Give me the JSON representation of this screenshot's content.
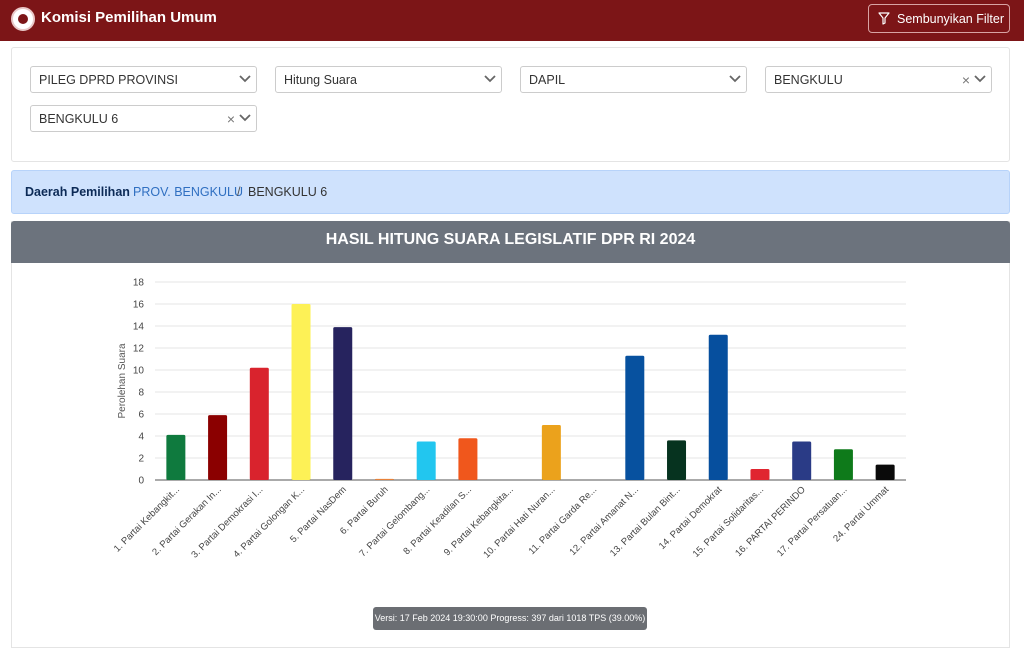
{
  "header": {
    "app_title": "Komisi Pemilihan Umum",
    "hide_filter_label": "Sembunyikan Filter"
  },
  "filters": {
    "election_type": "PILEG DPRD PROVINSI",
    "count_mode": "Hitung Suara",
    "region_level": "DAPIL",
    "province": "BENGKULU",
    "district": "BENGKULU 6",
    "clear_symbol": "×"
  },
  "breadcrumb": {
    "label": "Daerah Pemilihan",
    "province_link": "PROV. BENGKULU",
    "separator": "/",
    "current": "BENGKULU 6"
  },
  "chart_data": {
    "type": "bar",
    "title": "HASIL HITUNG SUARA LEGISLATIF DPR RI 2024",
    "xlabel": "",
    "ylabel": "Perolehan Suara",
    "ylim": [
      0,
      18
    ],
    "yticks": [
      0,
      2,
      4,
      6,
      8,
      10,
      12,
      14,
      16,
      18
    ],
    "grid": true,
    "categories": [
      "1. Partai Kebangkit...",
      "2. Partai Gerakan In...",
      "3. Partai Demokrasi I...",
      "4. Partai Golongan K...",
      "5. Partai NasDem",
      "6. Partai Buruh",
      "7. Partai Gelombang...",
      "8. Partai Keadilan S...",
      "9. Partai Kebangkita...",
      "10. Partai Hati Nuran...",
      "11. Partai Garda Re...",
      "12. Partai Amanat N...",
      "13. Partai Bulan Bint...",
      "14. Partai Demokrat",
      "15. Partai Solidaritas...",
      "16. PARTAI PERINDO",
      "17. Partai Persatuan...",
      "24. Partai Ummat"
    ],
    "values": [
      4.1,
      5.9,
      10.2,
      16,
      13.9,
      0.1,
      3.5,
      3.8,
      0,
      5,
      0,
      11.3,
      3.6,
      13.2,
      1,
      3.5,
      2.8,
      1.4
    ],
    "colors": [
      "#0f7a3e",
      "#8b0000",
      "#d9232d",
      "#fdf156",
      "#26235e",
      "#e8823a",
      "#22c6ef",
      "#f0571c",
      "#2e7d32",
      "#eba21c",
      "#8c5a2b",
      "#07519f",
      "#06331f",
      "#064f9e",
      "#e02530",
      "#2a3b86",
      "#0e7a1a",
      "#0a0a0a"
    ]
  },
  "status": {
    "version_text": "Versi: 17 Feb 2024 19:30:00 Progress: 397 dari 1018 TPS (39.00%)"
  }
}
